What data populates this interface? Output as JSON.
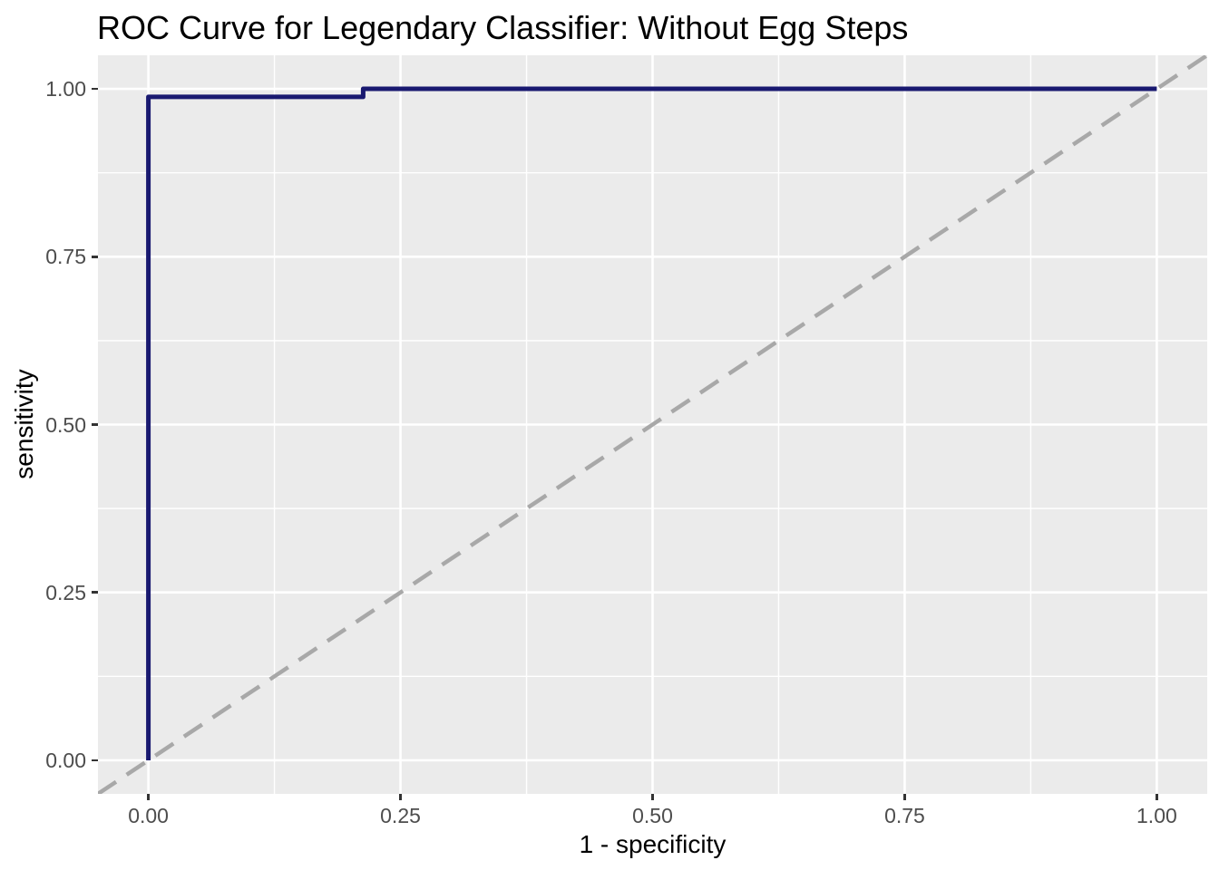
{
  "title": "ROC Curve for Legendary Classifier: Without Egg Steps",
  "chart_data": {
    "type": "line",
    "title": "ROC Curve for Legendary Classifier: Without Egg Steps",
    "xlabel": "1 - specificity",
    "ylabel": "sensitivity",
    "xlim": [
      -0.05,
      1.05
    ],
    "ylim": [
      -0.05,
      1.05
    ],
    "x_ticks": {
      "values": [
        0,
        0.25,
        0.5,
        0.75,
        1
      ],
      "labels": [
        "0.00",
        "0.25",
        "0.50",
        "0.75",
        "1.00"
      ]
    },
    "y_ticks": {
      "values": [
        0,
        0.25,
        0.5,
        0.75,
        1
      ],
      "labels": [
        "0.00",
        "0.25",
        "0.50",
        "0.75",
        "1.00"
      ]
    },
    "grid": {
      "major": true,
      "minor": true,
      "minor_step": 0.125
    },
    "legend": "none",
    "series": [
      {
        "name": "chance-diagonal",
        "style": "dashed",
        "color": "#A8A8A8",
        "stroke_width": 4.5,
        "dash": [
          24,
          14
        ],
        "points": [
          [
            -0.05,
            -0.05
          ],
          [
            1.05,
            1.05
          ]
        ]
      },
      {
        "name": "roc-curve",
        "style": "solid-step",
        "color": "#191970",
        "stroke_width": 5,
        "points": [
          [
            0,
            0
          ],
          [
            0,
            0.988
          ],
          [
            0.213,
            0.988
          ],
          [
            0.213,
            1.0
          ],
          [
            1.0,
            1.0
          ]
        ]
      }
    ],
    "colors": {
      "panel_background": "#EBEBEB",
      "gridline": "#FFFFFF",
      "tick_text": "#4D4D4D",
      "axis_title": "#000000",
      "title_text": "#000000",
      "tick_mark": "#333333"
    }
  }
}
